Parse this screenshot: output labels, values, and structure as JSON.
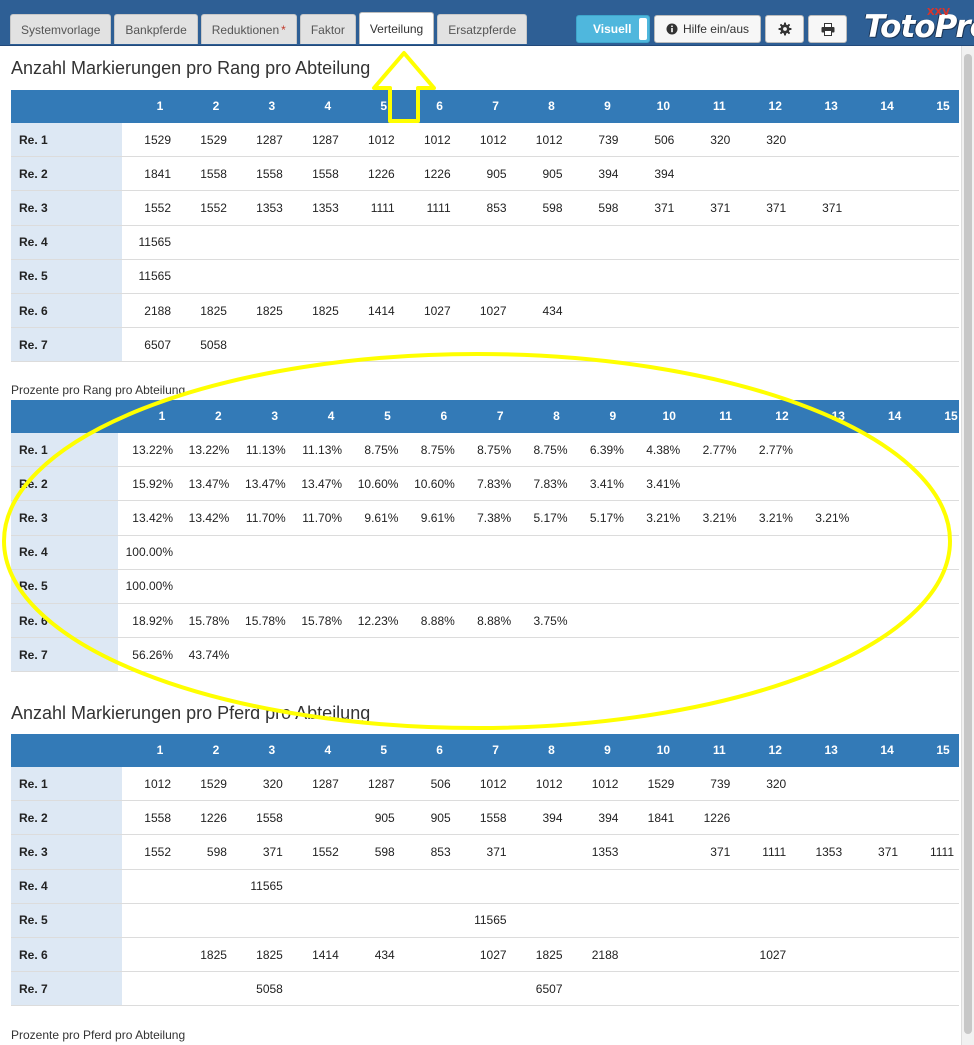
{
  "tabs": [
    {
      "label": "Systemvorlage",
      "active": false,
      "star": ""
    },
    {
      "label": "Bankpferde",
      "active": false,
      "star": ""
    },
    {
      "label": "Reduktionen",
      "active": false,
      "star": "*"
    },
    {
      "label": "Faktor",
      "active": false,
      "star": ""
    },
    {
      "label": "Verteilung",
      "active": true,
      "star": ""
    },
    {
      "label": "Ersatzpferde",
      "active": false,
      "star": ""
    }
  ],
  "toolbar": {
    "visuell_label": "Visuell",
    "help_label": "Hilfe ein/aus",
    "help_icon": "info-circle-icon",
    "settings_icon": "gear-icon",
    "print_icon": "printer-icon"
  },
  "logo": {
    "text": "TotoPro",
    "badge": "XXV"
  },
  "colors": {
    "header": "#337ab7",
    "topbar": "#2e5f95",
    "row_label_bg": "#dde8f4",
    "accent": "#4fb7dd",
    "annotation": "#ffff00"
  },
  "columns": [
    "1",
    "2",
    "3",
    "4",
    "5",
    "6",
    "7",
    "8",
    "9",
    "10",
    "11",
    "12",
    "13",
    "14",
    "15"
  ],
  "sections": [
    {
      "title": "Anzahl Markierungen pro Rang pro Abteilung",
      "style": "heading",
      "rows": [
        {
          "label": "Re. 1",
          "values": [
            "1529",
            "1529",
            "1287",
            "1287",
            "1012",
            "1012",
            "1012",
            "1012",
            "739",
            "506",
            "320",
            "320",
            "",
            "",
            ""
          ]
        },
        {
          "label": "Re. 2",
          "values": [
            "1841",
            "1558",
            "1558",
            "1558",
            "1226",
            "1226",
            "905",
            "905",
            "394",
            "394",
            "",
            "",
            "",
            "",
            ""
          ]
        },
        {
          "label": "Re. 3",
          "values": [
            "1552",
            "1552",
            "1353",
            "1353",
            "1111",
            "1111",
            "853",
            "598",
            "598",
            "371",
            "371",
            "371",
            "371",
            "",
            ""
          ]
        },
        {
          "label": "Re. 4",
          "values": [
            "11565",
            "",
            "",
            "",
            "",
            "",
            "",
            "",
            "",
            "",
            "",
            "",
            "",
            "",
            ""
          ]
        },
        {
          "label": "Re. 5",
          "values": [
            "11565",
            "",
            "",
            "",
            "",
            "",
            "",
            "",
            "",
            "",
            "",
            "",
            "",
            "",
            ""
          ]
        },
        {
          "label": "Re. 6",
          "values": [
            "2188",
            "1825",
            "1825",
            "1825",
            "1414",
            "1027",
            "1027",
            "434",
            "",
            "",
            "",
            "",
            "",
            "",
            ""
          ]
        },
        {
          "label": "Re. 7",
          "values": [
            "6507",
            "5058",
            "",
            "",
            "",
            "",
            "",
            "",
            "",
            "",
            "",
            "",
            "",
            "",
            ""
          ]
        }
      ]
    },
    {
      "title": "Prozente pro Rang pro Abteilung",
      "style": "sublabel",
      "rows": [
        {
          "label": "Re. 1",
          "values": [
            "13.22%",
            "13.22%",
            "11.13%",
            "11.13%",
            "8.75%",
            "8.75%",
            "8.75%",
            "8.75%",
            "6.39%",
            "4.38%",
            "2.77%",
            "2.77%",
            "",
            "",
            ""
          ]
        },
        {
          "label": "Re. 2",
          "values": [
            "15.92%",
            "13.47%",
            "13.47%",
            "13.47%",
            "10.60%",
            "10.60%",
            "7.83%",
            "7.83%",
            "3.41%",
            "3.41%",
            "",
            "",
            "",
            "",
            ""
          ]
        },
        {
          "label": "Re. 3",
          "values": [
            "13.42%",
            "13.42%",
            "11.70%",
            "11.70%",
            "9.61%",
            "9.61%",
            "7.38%",
            "5.17%",
            "5.17%",
            "3.21%",
            "3.21%",
            "3.21%",
            "3.21%",
            "",
            ""
          ]
        },
        {
          "label": "Re. 4",
          "values": [
            "100.00%",
            "",
            "",
            "",
            "",
            "",
            "",
            "",
            "",
            "",
            "",
            "",
            "",
            "",
            ""
          ]
        },
        {
          "label": "Re. 5",
          "values": [
            "100.00%",
            "",
            "",
            "",
            "",
            "",
            "",
            "",
            "",
            "",
            "",
            "",
            "",
            "",
            ""
          ]
        },
        {
          "label": "Re. 6",
          "values": [
            "18.92%",
            "15.78%",
            "15.78%",
            "15.78%",
            "12.23%",
            "8.88%",
            "8.88%",
            "3.75%",
            "",
            "",
            "",
            "",
            "",
            "",
            ""
          ]
        },
        {
          "label": "Re. 7",
          "values": [
            "56.26%",
            "43.74%",
            "",
            "",
            "",
            "",
            "",
            "",
            "",
            "",
            "",
            "",
            "",
            "",
            ""
          ]
        }
      ]
    },
    {
      "title": "Anzahl Markierungen pro Pferd pro Abteilung",
      "style": "heading",
      "rows": [
        {
          "label": "Re. 1",
          "values": [
            "1012",
            "1529",
            "320",
            "1287",
            "1287",
            "506",
            "1012",
            "1012",
            "1012",
            "1529",
            "739",
            "320",
            "",
            "",
            ""
          ]
        },
        {
          "label": "Re. 2",
          "values": [
            "1558",
            "1226",
            "1558",
            "",
            "905",
            "905",
            "1558",
            "394",
            "394",
            "1841",
            "1226",
            "",
            "",
            "",
            ""
          ]
        },
        {
          "label": "Re. 3",
          "values": [
            "1552",
            "598",
            "371",
            "1552",
            "598",
            "853",
            "371",
            "",
            "1353",
            "",
            "371",
            "1111",
            "1353",
            "371",
            "1111"
          ]
        },
        {
          "label": "Re. 4",
          "values": [
            "",
            "",
            "11565",
            "",
            "",
            "",
            "",
            "",
            "",
            "",
            "",
            "",
            "",
            "",
            ""
          ]
        },
        {
          "label": "Re. 5",
          "values": [
            "",
            "",
            "",
            "",
            "",
            "",
            "11565",
            "",
            "",
            "",
            "",
            "",
            "",
            "",
            ""
          ]
        },
        {
          "label": "Re. 6",
          "values": [
            "",
            "1825",
            "1825",
            "1414",
            "434",
            "",
            "1027",
            "1825",
            "2188",
            "",
            "",
            "1027",
            "",
            "",
            ""
          ]
        },
        {
          "label": "Re. 7",
          "values": [
            "",
            "",
            "5058",
            "",
            "",
            "",
            "",
            "6507",
            "",
            "",
            "",
            "",
            "",
            "",
            ""
          ]
        }
      ]
    }
  ],
  "footer_label": "Prozente pro Pferd pro Abteilung"
}
